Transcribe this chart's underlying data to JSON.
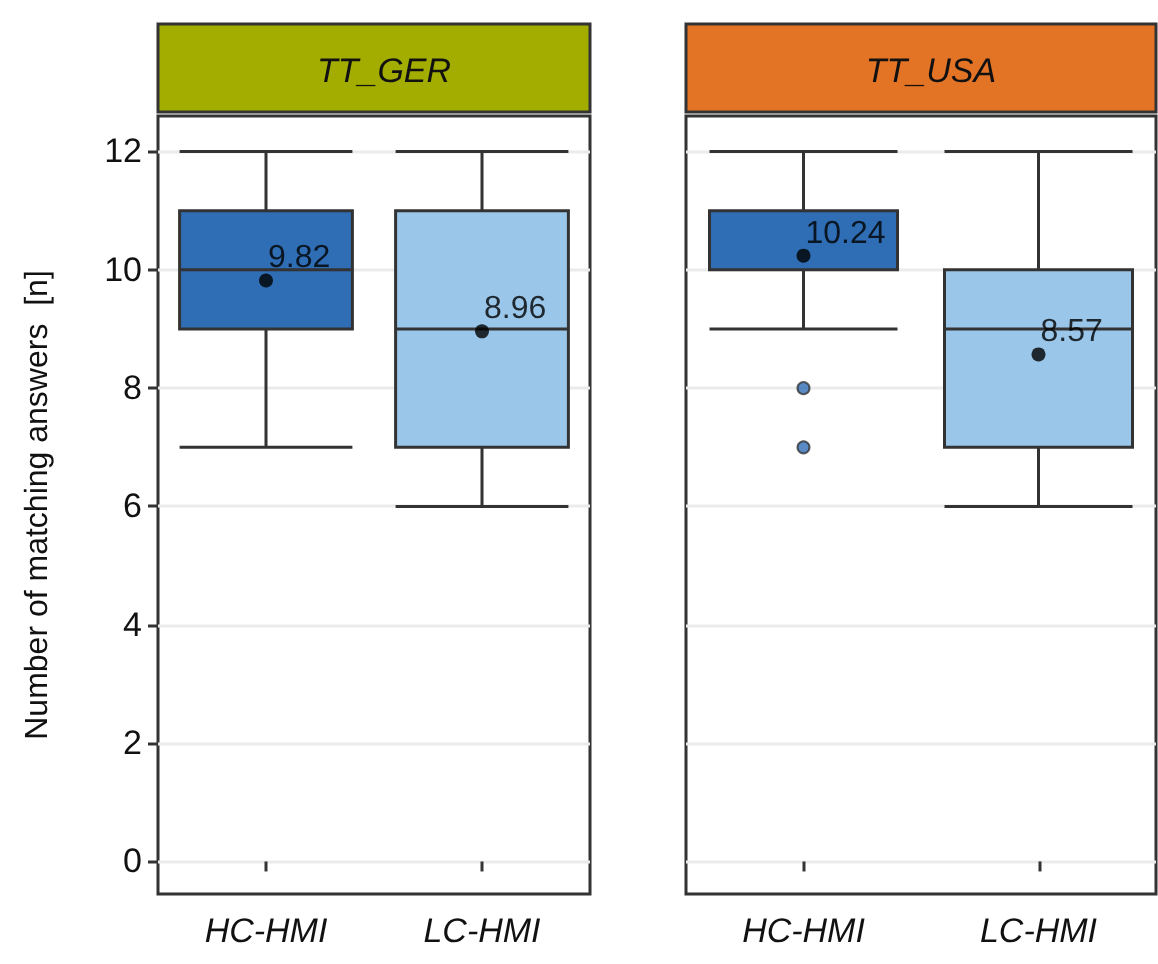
{
  "chart_data": [
    {
      "type": "box",
      "title": "TT_GER",
      "ylabel": "Number of matching answers  [n]",
      "categories": [
        "HC-HMI",
        "LC-HMI"
      ],
      "colors": [
        "#2f6db5",
        "#9ac6ea"
      ],
      "boxes": [
        {
          "low": 7,
          "q1": 9,
          "median": 10,
          "q3": 11,
          "high": 12,
          "mean": 9.82
        },
        {
          "low": 6,
          "q1": 7,
          "median": 9,
          "q3": 11,
          "high": 12,
          "mean": 8.96
        }
      ],
      "annotations": [
        "9.82",
        "8.96"
      ],
      "ylim": [
        -0.55,
        12.6
      ],
      "yticks": [
        0,
        2,
        4,
        6,
        8,
        10,
        12
      ],
      "grid": "y"
    },
    {
      "type": "box",
      "title": "TT_USA",
      "categories": [
        "HC-HMI",
        "LC-HMI"
      ],
      "colors": [
        "#2f6db5",
        "#9ac6ea"
      ],
      "boxes": [
        {
          "low": 9,
          "q1": 10,
          "median": 10,
          "q3": 11,
          "high": 12,
          "mean": 10.24,
          "outliers": [
            7,
            8
          ]
        },
        {
          "low": 6,
          "q1": 7,
          "median": 9,
          "q3": 10,
          "high": 12,
          "mean": 8.57
        }
      ],
      "annotations": [
        "10.24",
        "8.57"
      ],
      "ylim": [
        -0.55,
        12.6
      ],
      "yticks": [
        0,
        2,
        4,
        6,
        8,
        10,
        12
      ],
      "grid": "y",
      "tick_labels": "x"
    }
  ]
}
